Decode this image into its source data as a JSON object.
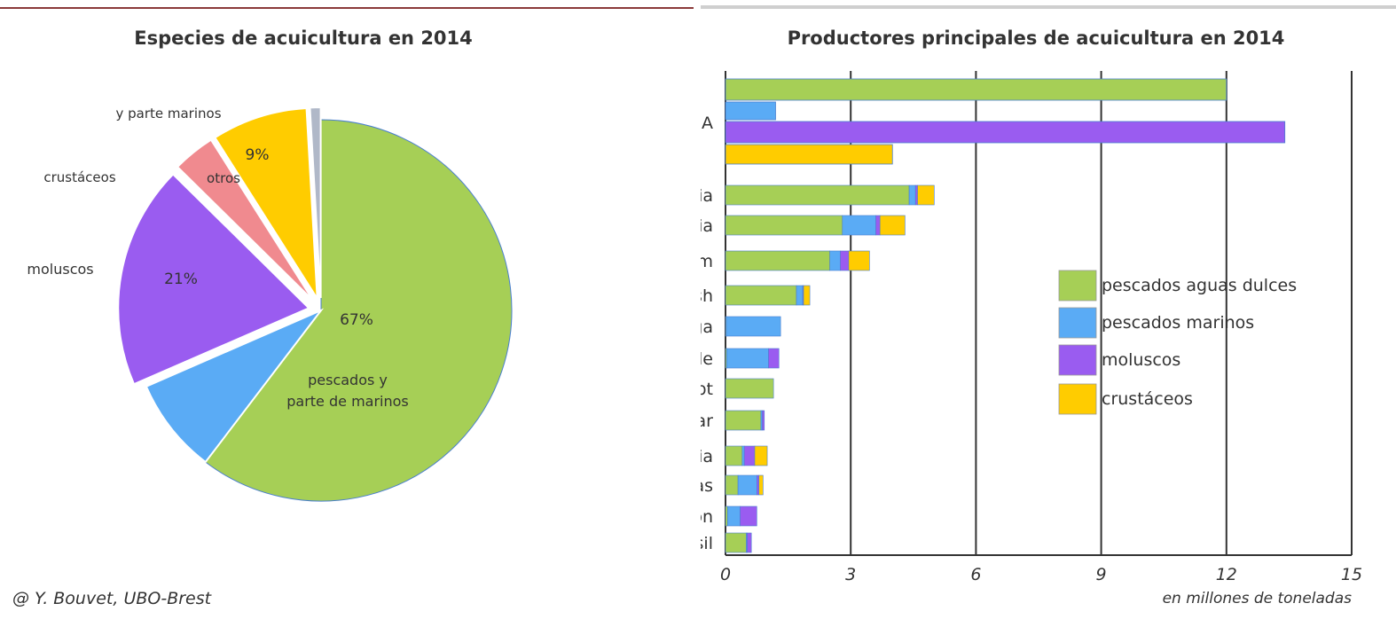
{
  "credit": "@ Y. Bouvet, UBO-Brest",
  "chart_data": [
    {
      "type": "pie",
      "title": "Especies de acuicultura en 2014",
      "slices": [
        {
          "label": "pescados y parte de marinos",
          "value": 67,
          "value_label": "67%",
          "color": "#a6cf56"
        },
        {
          "label": "",
          "value": 9,
          "value_label": "",
          "color": "#5aabf5"
        },
        {
          "label": "moluscos",
          "value": 21,
          "value_label": "21%",
          "color": "#9a5cf0"
        },
        {
          "label": "crustáceos",
          "value": 4,
          "value_label": "",
          "color": "#f08a8f"
        },
        {
          "label": "otros",
          "value": 9,
          "value_label": "9%",
          "color": "#ffcc00"
        },
        {
          "label": "",
          "value": 1,
          "value_label": "",
          "color": "#b0b8c8"
        }
      ],
      "side_labels": [
        "y parte marinos",
        "crustáceos",
        "moluscos",
        "otros"
      ]
    },
    {
      "type": "bar",
      "title": "Productores principales de acuicultura en 2014",
      "xlabel": "en millones de toneladas",
      "xlim": [
        0,
        15
      ],
      "xticks": [
        0,
        3,
        6,
        9,
        12,
        15
      ],
      "series_names": [
        "pescados aguas dulces",
        "pescados marinos",
        "moluscos",
        "crustáceos"
      ],
      "colors": [
        "#a6cf56",
        "#5aabf5",
        "#9a5cf0",
        "#ffcc00"
      ],
      "categories": [
        "CHINA",
        "India",
        "Indonesia",
        "Vietnam",
        "Bangladesh",
        "Noruega",
        "Chile",
        "Egypt",
        "Myanmar",
        "Tailandia",
        "Filipinas",
        "Japón",
        "Brasil"
      ],
      "china": [
        12.0,
        1.2,
        13.4,
        4.0
      ],
      "values": [
        [
          4.4,
          0.15,
          0.05,
          0.4
        ],
        [
          2.8,
          0.8,
          0.1,
          0.6
        ],
        [
          2.5,
          0.25,
          0.2,
          0.5
        ],
        [
          1.7,
          0.15,
          0.02,
          0.15
        ],
        [
          0.02,
          1.3,
          0.0,
          0.0
        ],
        [
          0.03,
          1.0,
          0.25,
          0.0
        ],
        [
          1.15,
          0.0,
          0.0,
          0.0
        ],
        [
          0.85,
          0.03,
          0.05,
          0.0
        ],
        [
          0.4,
          0.05,
          0.25,
          0.3
        ],
        [
          0.3,
          0.45,
          0.05,
          0.1
        ],
        [
          0.05,
          0.3,
          0.4,
          0.0
        ],
        [
          0.5,
          0.02,
          0.1,
          0.0
        ]
      ],
      "legend_position": "right"
    }
  ]
}
